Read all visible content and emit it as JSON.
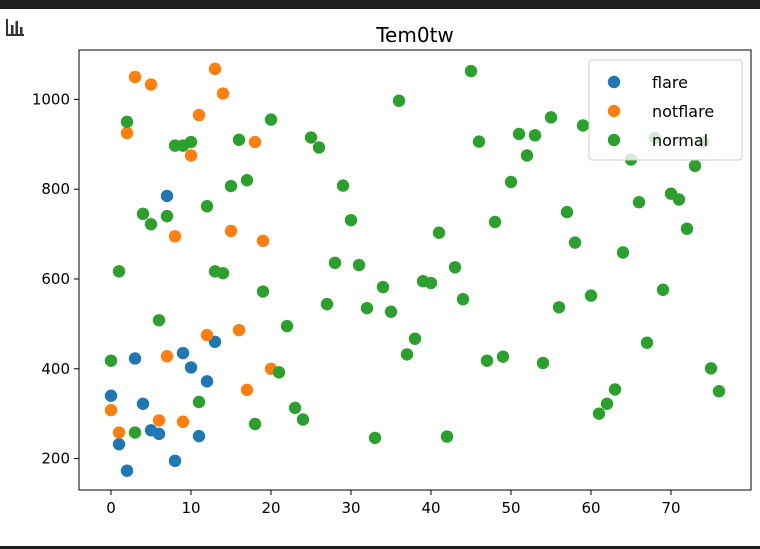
{
  "chart_data": {
    "type": "scatter",
    "title": "Tem0tw",
    "xlabel": "",
    "ylabel": "",
    "xlim": [
      -4,
      80
    ],
    "ylim": [
      130,
      1110
    ],
    "xticks": [
      0,
      10,
      20,
      30,
      40,
      50,
      60,
      70
    ],
    "yticks": [
      200,
      400,
      600,
      800,
      1000
    ],
    "legend_position": "top-right",
    "grid": false,
    "series": [
      {
        "name": "flare",
        "color": "#1f77b4",
        "points": [
          [
            0,
            340
          ],
          [
            1,
            232
          ],
          [
            2,
            173
          ],
          [
            3,
            423
          ],
          [
            4,
            322
          ],
          [
            5,
            263
          ],
          [
            6,
            255
          ],
          [
            7,
            785
          ],
          [
            8,
            195
          ],
          [
            9,
            435
          ],
          [
            10,
            403
          ],
          [
            11,
            250
          ],
          [
            12,
            372
          ],
          [
            13,
            460
          ]
        ]
      },
      {
        "name": "notflare",
        "color": "#ff7f0e",
        "points": [
          [
            0,
            308
          ],
          [
            1,
            258
          ],
          [
            2,
            925
          ],
          [
            3,
            1050
          ],
          [
            5,
            1033
          ],
          [
            6,
            285
          ],
          [
            7,
            428
          ],
          [
            8,
            695
          ],
          [
            9,
            282
          ],
          [
            10,
            875
          ],
          [
            11,
            965
          ],
          [
            12,
            475
          ],
          [
            13,
            1068
          ],
          [
            14,
            1013
          ],
          [
            15,
            707
          ],
          [
            16,
            486
          ],
          [
            17,
            353
          ],
          [
            18,
            905
          ],
          [
            19,
            685
          ],
          [
            20,
            400
          ]
        ]
      },
      {
        "name": "normal",
        "color": "#2ca02c",
        "points": [
          [
            0,
            418
          ],
          [
            1,
            617
          ],
          [
            2,
            950
          ],
          [
            3,
            258
          ],
          [
            4,
            745
          ],
          [
            5,
            722
          ],
          [
            6,
            508
          ],
          [
            7,
            740
          ],
          [
            8,
            897
          ],
          [
            9,
            897
          ],
          [
            10,
            905
          ],
          [
            11,
            326
          ],
          [
            12,
            762
          ],
          [
            13,
            617
          ],
          [
            14,
            613
          ],
          [
            15,
            807
          ],
          [
            16,
            910
          ],
          [
            17,
            820
          ],
          [
            18,
            277
          ],
          [
            19,
            572
          ],
          [
            20,
            955
          ],
          [
            21,
            392
          ],
          [
            22,
            495
          ],
          [
            23,
            313
          ],
          [
            24,
            287
          ],
          [
            25,
            915
          ],
          [
            26,
            893
          ],
          [
            27,
            544
          ],
          [
            28,
            636
          ],
          [
            29,
            808
          ],
          [
            30,
            731
          ],
          [
            31,
            631
          ],
          [
            32,
            535
          ],
          [
            33,
            246
          ],
          [
            34,
            582
          ],
          [
            35,
            527
          ],
          [
            36,
            997
          ],
          [
            37,
            432
          ],
          [
            38,
            467
          ],
          [
            39,
            595
          ],
          [
            40,
            591
          ],
          [
            41,
            703
          ],
          [
            42,
            249
          ],
          [
            43,
            626
          ],
          [
            44,
            555
          ],
          [
            45,
            1063
          ],
          [
            46,
            906
          ],
          [
            47,
            418
          ],
          [
            48,
            727
          ],
          [
            49,
            427
          ],
          [
            50,
            816
          ],
          [
            51,
            923
          ],
          [
            52,
            875
          ],
          [
            53,
            920
          ],
          [
            54,
            413
          ],
          [
            55,
            960
          ],
          [
            56,
            537
          ],
          [
            57,
            749
          ],
          [
            58,
            681
          ],
          [
            59,
            942
          ],
          [
            60,
            563
          ],
          [
            61,
            300
          ],
          [
            62,
            322
          ],
          [
            63,
            354
          ],
          [
            64,
            659
          ],
          [
            65,
            866
          ],
          [
            66,
            771
          ],
          [
            67,
            458
          ],
          [
            68,
            914
          ],
          [
            69,
            576
          ],
          [
            70,
            790
          ],
          [
            71,
            777
          ],
          [
            72,
            712
          ],
          [
            73,
            852
          ],
          [
            74,
            905
          ],
          [
            75,
            401
          ],
          [
            76,
            350
          ]
        ]
      }
    ]
  }
}
